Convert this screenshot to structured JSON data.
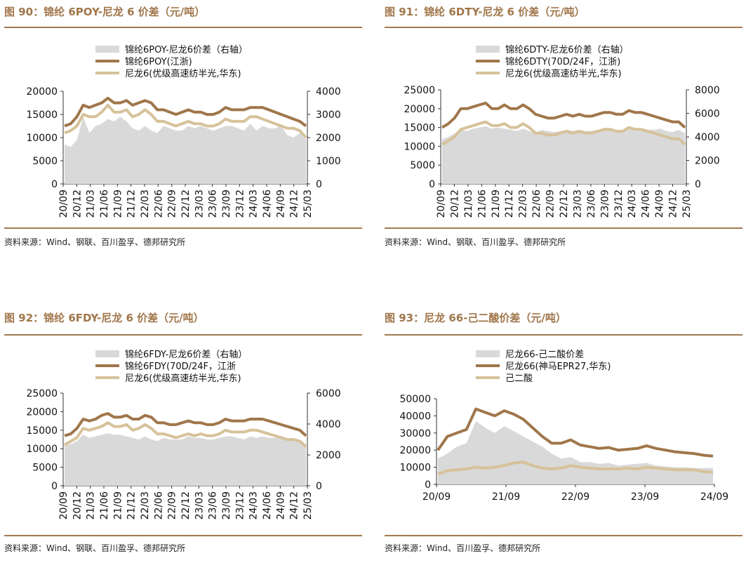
{
  "colors": {
    "spread_fill": "#d9d9d9",
    "line_dark": "#a0764a",
    "line_light": "#d6c29a",
    "title_color": "#a0764a",
    "rule_color": "#a07a50"
  },
  "panels": [
    {
      "title": "图 90：锦纶 6POY-尼龙 6 价差（元/吨）",
      "source": "资料来源：Wind、钢联、百川盈孚、德邦研究所",
      "chart_data": {
        "type": "line",
        "legend": [
          "锦纶6POY-尼龙6价差（右轴）",
          "锦纶6POY(江浙)",
          "尼龙6(优级高速纺半光,华东)"
        ],
        "x_ticks": [
          "20/09",
          "20/12",
          "21/03",
          "21/06",
          "21/09",
          "21/12",
          "22/03",
          "22/06",
          "22/09",
          "22/12",
          "23/03",
          "23/06",
          "23/09",
          "23/12",
          "24/03",
          "24/06",
          "24/09",
          "24/12",
          "25/03"
        ],
        "y_left_ticks": [
          "0",
          "5000",
          "10000",
          "15000",
          "20000"
        ],
        "y_right_ticks": [
          "0",
          "1000",
          "2000",
          "3000",
          "4000"
        ],
        "y_left_range": [
          0,
          20000
        ],
        "y_right_range": [
          0,
          4000
        ],
        "series": [
          {
            "name": "锦纶6POY-尼龙6价差（右轴）",
            "axis": "right",
            "style": "area",
            "values": [
              1700,
              1600,
              1900,
              2900,
              2200,
              2500,
              2600,
              2800,
              2700,
              2900,
              2700,
              2400,
              2300,
              2500,
              2300,
              2200,
              2500,
              2400,
              2300,
              2300,
              2500,
              2400,
              2500,
              2400,
              2300,
              2400,
              2500,
              2500,
              2400,
              2300,
              2600,
              2300,
              2500,
              2400,
              2400,
              2500,
              2100,
              2000,
              2200,
              1900
            ]
          },
          {
            "name": "锦纶6POY(江浙)",
            "axis": "left",
            "style": "line",
            "values": [
              12500,
              13000,
              14500,
              17000,
              16500,
              17000,
              17500,
              18500,
              17500,
              17500,
              18000,
              17000,
              17500,
              18000,
              17500,
              16000,
              16000,
              15500,
              15000,
              15500,
              16000,
              15500,
              15500,
              15000,
              15000,
              15500,
              16500,
              16000,
              16000,
              16000,
              16500,
              16500,
              16500,
              16000,
              15500,
              15000,
              14500,
              14000,
              13500,
              12500
            ]
          },
          {
            "name": "尼龙6(优级高速纺半光,华东)",
            "axis": "left",
            "style": "line",
            "values": [
              11000,
              11500,
              12500,
              15000,
              14500,
              14500,
              15500,
              17000,
              15500,
              15500,
              16000,
              14500,
              15000,
              16000,
              15000,
              13500,
              13500,
              13000,
              12500,
              13000,
              13500,
              13000,
              13000,
              12500,
              12500,
              13000,
              14000,
              13500,
              13500,
              13500,
              14500,
              14500,
              14000,
              13500,
              13000,
              12500,
              12000,
              12000,
              11500,
              10000
            ]
          }
        ]
      }
    },
    {
      "title": "图 91：锦纶 6DTY-尼龙 6 价差（元/吨）",
      "source": "资料来源：Wind、钢联、百川盈孚、德邦研究所",
      "chart_data": {
        "type": "line",
        "legend": [
          "锦纶6DTY-尼龙6价差（右轴）",
          "锦纶6DTY(70D/24F，江浙)",
          "尼龙6(优级高速纺半光,华东)"
        ],
        "x_ticks": [
          "20/09",
          "20/12",
          "21/03",
          "21/06",
          "21/09",
          "21/12",
          "22/03",
          "22/06",
          "22/09",
          "22/12",
          "23/03",
          "23/06",
          "23/09",
          "23/12",
          "24/03",
          "24/06",
          "24/09",
          "24/12",
          "25/03"
        ],
        "y_left_ticks": [
          "0",
          "5000",
          "10000",
          "15000",
          "20000",
          "25000"
        ],
        "y_right_ticks": [
          "0",
          "2000",
          "4000",
          "6000",
          "8000"
        ],
        "y_left_range": [
          0,
          25000
        ],
        "y_right_range": [
          0,
          8000
        ],
        "series": [
          {
            "name": "锦纶6DTY-尼龙6价差（右轴）",
            "axis": "right",
            "style": "area",
            "values": [
              3800,
              4000,
              4300,
              4600,
              4500,
              4700,
              4800,
              4900,
              4700,
              4800,
              4700,
              4600,
              4500,
              4700,
              4500,
              4300,
              4600,
              4500,
              4400,
              4500,
              4600,
              4500,
              4600,
              4500,
              4500,
              4600,
              4700,
              4700,
              4600,
              4500,
              4700,
              4600,
              4700,
              4600,
              4600,
              4700,
              4500,
              4400,
              4600,
              4300
            ]
          },
          {
            "name": "锦纶6DTY(70D/24F，江浙)",
            "axis": "left",
            "style": "line",
            "values": [
              15000,
              16000,
              17500,
              20000,
              20000,
              20500,
              21000,
              21500,
              20000,
              20000,
              21000,
              20000,
              20000,
              21000,
              20000,
              18500,
              18000,
              17500,
              17500,
              18000,
              18500,
              18000,
              18500,
              18000,
              18000,
              18500,
              19000,
              19000,
              18500,
              18500,
              19500,
              19000,
              19000,
              18500,
              18000,
              17500,
              17000,
              16500,
              16500,
              15000
            ]
          },
          {
            "name": "尼龙6(优级高速纺半光,华东)",
            "axis": "left",
            "style": "line",
            "values": [
              10500,
              11500,
              12500,
              14500,
              15000,
              15500,
              16000,
              16500,
              15500,
              15500,
              16000,
              15000,
              15000,
              16000,
              15000,
              13500,
              13500,
              13000,
              13000,
              13500,
              14000,
              13500,
              14000,
              13500,
              13500,
              14000,
              14500,
              14500,
              14000,
              14000,
              15000,
              14500,
              14500,
              14000,
              13500,
              13000,
              12500,
              12000,
              12000,
              10500
            ]
          }
        ]
      }
    },
    {
      "title": "图 92：锦纶 6FDY-尼龙 6 价差（元/吨）",
      "source": "资料来源：Wind、钢联、百川盈孚、德邦研究所",
      "chart_data": {
        "type": "line",
        "legend": [
          "锦纶6FDY-尼龙6价差（右轴）",
          "锦纶6FDY(70D/24F，江浙",
          "尼龙6(优级高速纺半光,华东)"
        ],
        "x_ticks": [
          "20/09",
          "20/12",
          "21/03",
          "21/06",
          "21/09",
          "21/12",
          "22/03",
          "22/06",
          "22/09",
          "22/12",
          "23/03",
          "23/06",
          "23/09",
          "23/12",
          "24/03",
          "24/06",
          "24/09",
          "24/12",
          "25/03"
        ],
        "y_left_ticks": [
          "0",
          "5000",
          "10000",
          "15000",
          "20000",
          "25000"
        ],
        "y_right_ticks": [
          "0",
          "2000",
          "4000",
          "6000"
        ],
        "y_left_range": [
          0,
          25000
        ],
        "y_right_range": [
          0,
          6000
        ],
        "series": [
          {
            "name": "锦纶6FDY-尼龙6价差（右轴）",
            "axis": "right",
            "style": "area",
            "values": [
              2600,
              2700,
              2900,
              3300,
              3100,
              3200,
              3300,
              3400,
              3300,
              3300,
              3200,
              3100,
              3000,
              3200,
              3000,
              2900,
              3100,
              3000,
              3000,
              3000,
              3200,
              3100,
              3100,
              3000,
              3000,
              3100,
              3200,
              3200,
              3100,
              3000,
              3200,
              3100,
              3200,
              3100,
              3100,
              3200,
              3000,
              2900,
              3000,
              2700
            ]
          },
          {
            "name": "锦纶6FDY(70D/24F，江浙",
            "axis": "left",
            "style": "line",
            "values": [
              13500,
              14000,
              15500,
              18000,
              17500,
              18000,
              19000,
              19500,
              18500,
              18500,
              19000,
              18000,
              18000,
              19000,
              18500,
              17000,
              17000,
              16500,
              16500,
              17000,
              17500,
              17000,
              17000,
              16500,
              16500,
              17000,
              18000,
              17500,
              17500,
              17500,
              18000,
              18000,
              18000,
              17500,
              17000,
              16500,
              16000,
              15500,
              15000,
              13500
            ]
          },
          {
            "name": "尼龙6(优级高速纺半光,华东)",
            "axis": "left",
            "style": "line",
            "values": [
              11000,
              12000,
              13000,
              15500,
              15000,
              15500,
              16000,
              17000,
              16000,
              16000,
              16500,
              15000,
              15500,
              16500,
              15500,
              14000,
              14000,
              13500,
              13000,
              13500,
              14000,
              13500,
              14000,
              13500,
              13500,
              14000,
              15000,
              14500,
              14500,
              14500,
              15000,
              15000,
              14500,
              14000,
              13500,
              13000,
              12500,
              12500,
              12000,
              10500
            ]
          }
        ]
      }
    },
    {
      "title": "图 93：尼龙 66-己二酸价差（元/吨）",
      "source": "资料来源：Wind、百川盈孚、德邦研究所",
      "chart_data": {
        "type": "line",
        "legend": [
          "尼龙66-己二酸价差",
          "尼龙66(神马EPR27,华东)",
          "己二酸"
        ],
        "x_ticks": [
          "20/09",
          "21/09",
          "22/09",
          "23/09",
          "24/09"
        ],
        "y_left_ticks": [
          "0",
          "10000",
          "20000",
          "30000",
          "40000",
          "50000"
        ],
        "y_left_range": [
          0,
          50000
        ],
        "series": [
          {
            "name": "尼龙66-己二酸价差",
            "axis": "left",
            "style": "area",
            "values": [
              15000,
              18000,
              22000,
              24000,
              37000,
              33000,
              30000,
              34000,
              31000,
              28000,
              25000,
              22000,
              18000,
              15000,
              16000,
              13000,
              13000,
              12000,
              12500,
              11000,
              11500,
              12000,
              12500,
              11000,
              10500,
              10000,
              10000,
              9500,
              9500,
              9500
            ]
          },
          {
            "name": "尼龙66(神马EPR27,华东)",
            "axis": "left",
            "style": "line",
            "values": [
              20000,
              28000,
              30000,
              32000,
              44000,
              42000,
              40000,
              43000,
              41000,
              38000,
              33000,
              28000,
              24000,
              24000,
              26000,
              23000,
              22000,
              21000,
              21500,
              20000,
              20500,
              21000,
              22500,
              21000,
              20000,
              19000,
              18500,
              18000,
              17000,
              16500
            ]
          },
          {
            "name": "己二酸",
            "axis": "left",
            "style": "line",
            "values": [
              6000,
              8000,
              8500,
              9000,
              10000,
              9500,
              10000,
              11000,
              12500,
              13000,
              11000,
              9500,
              9000,
              9500,
              11000,
              10000,
              9500,
              9000,
              9000,
              9000,
              9500,
              9000,
              10000,
              9500,
              9000,
              8500,
              8500,
              8500,
              7500,
              7000
            ]
          }
        ]
      }
    }
  ]
}
